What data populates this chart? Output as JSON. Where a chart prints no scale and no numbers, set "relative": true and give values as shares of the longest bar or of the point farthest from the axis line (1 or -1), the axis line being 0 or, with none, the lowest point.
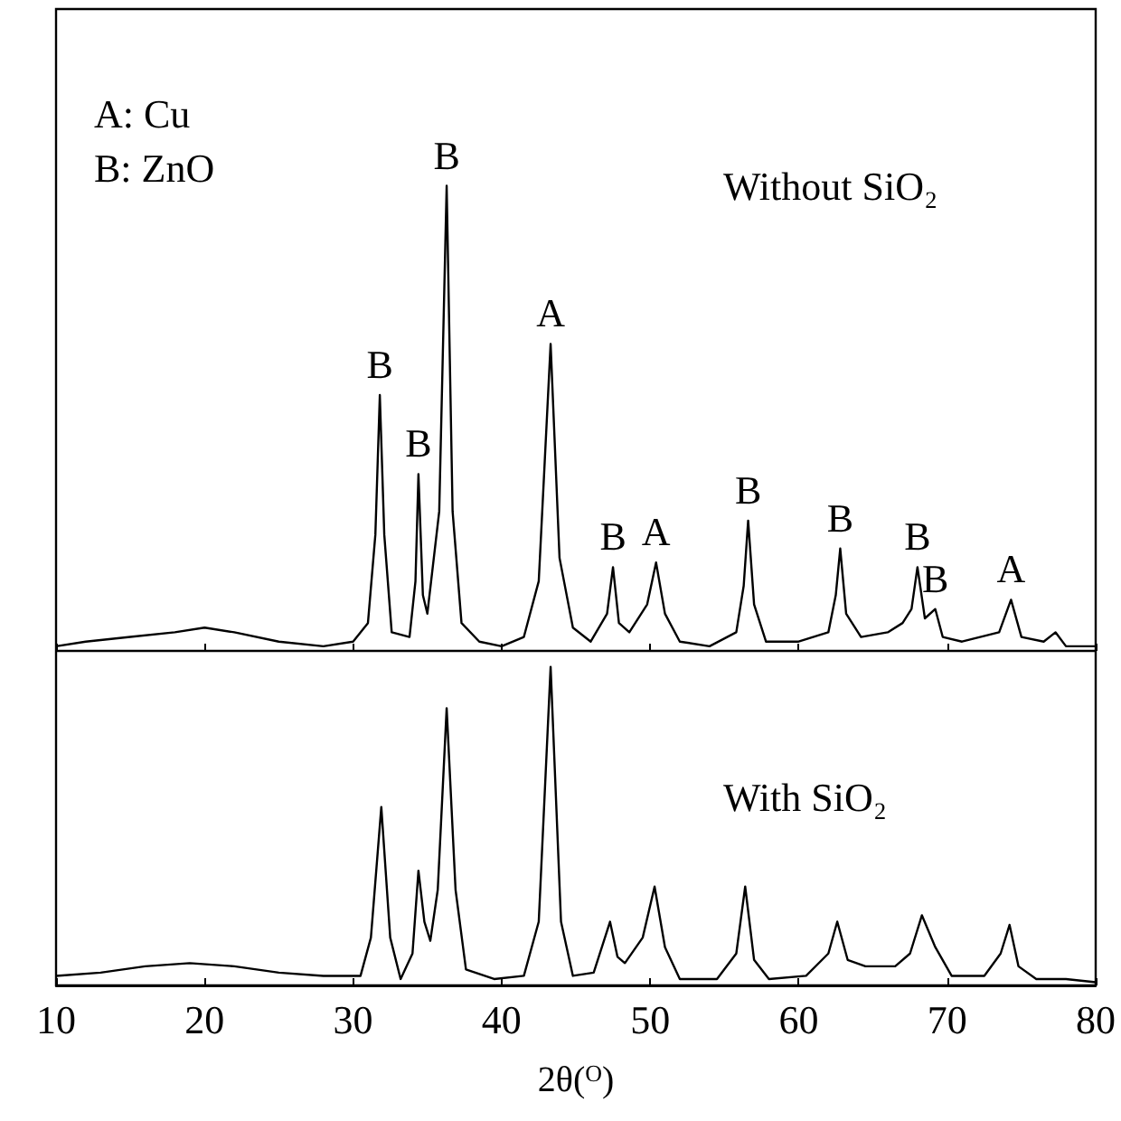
{
  "chart_data": [
    {
      "type": "line",
      "relative": true,
      "tick_labels": false,
      "xlim": [
        10,
        80
      ],
      "xticks": [
        10,
        20,
        30,
        40,
        50,
        60,
        70,
        80
      ],
      "series": [
        {
          "color": "#000000",
          "x": [
            10,
            12,
            15,
            18,
            20,
            22,
            25,
            28,
            30,
            31.0,
            31.5,
            31.8,
            32.1,
            32.6,
            33.8,
            34.2,
            34.4,
            34.7,
            35.0,
            35.8,
            36.3,
            36.7,
            37.3,
            38.5,
            40,
            41.5,
            42.5,
            43.3,
            43.9,
            44.8,
            46.0,
            47.1,
            47.5,
            47.9,
            48.6,
            49.8,
            50.4,
            51.0,
            52.0,
            54,
            55.8,
            56.3,
            56.6,
            57.0,
            57.8,
            60,
            62.0,
            62.5,
            62.8,
            63.2,
            64.2,
            66,
            67.0,
            67.6,
            68.0,
            68.5,
            69.2,
            69.7,
            71,
            73.5,
            74.3,
            75.0,
            76.5,
            77.3,
            78,
            80
          ],
          "values": [
            0.01,
            0.02,
            0.03,
            0.04,
            0.05,
            0.04,
            0.02,
            0.01,
            0.02,
            0.06,
            0.25,
            0.55,
            0.25,
            0.04,
            0.03,
            0.15,
            0.38,
            0.12,
            0.08,
            0.3,
            1.0,
            0.3,
            0.06,
            0.02,
            0.01,
            0.03,
            0.15,
            0.66,
            0.2,
            0.05,
            0.02,
            0.08,
            0.18,
            0.06,
            0.04,
            0.1,
            0.19,
            0.08,
            0.02,
            0.01,
            0.04,
            0.14,
            0.28,
            0.1,
            0.02,
            0.02,
            0.04,
            0.12,
            0.22,
            0.08,
            0.03,
            0.04,
            0.06,
            0.09,
            0.18,
            0.07,
            0.09,
            0.03,
            0.02,
            0.04,
            0.11,
            0.03,
            0.02,
            0.04,
            0.01,
            0.01
          ]
        }
      ],
      "annotations": [
        "A: Cu",
        "B: ZnO",
        "Without SiO₂",
        {
          "text": "B",
          "x": 31.8,
          "y": 0.55
        },
        {
          "text": "B",
          "x": 34.4,
          "y": 0.38
        },
        {
          "text": "B",
          "x": 36.3,
          "y": 1.0
        },
        {
          "text": "A",
          "x": 43.3,
          "y": 0.66
        },
        {
          "text": "B",
          "x": 47.5,
          "y": 0.18
        },
        {
          "text": "A",
          "x": 50.4,
          "y": 0.19
        },
        {
          "text": "B",
          "x": 56.6,
          "y": 0.28
        },
        {
          "text": "B",
          "x": 62.8,
          "y": 0.22
        },
        {
          "text": "B",
          "x": 68.0,
          "y": 0.18
        },
        {
          "text": "B",
          "x": 69.2,
          "y": 0.09
        },
        {
          "text": "A",
          "x": 74.3,
          "y": 0.11
        }
      ]
    },
    {
      "type": "line",
      "relative": true,
      "tick_labels": "x",
      "xlim": [
        10,
        80
      ],
      "xticks": [
        10,
        20,
        30,
        40,
        50,
        60,
        70,
        80
      ],
      "xlabel": "2θ($^{O}$)",
      "series": [
        {
          "color": "#000000",
          "x": [
            10,
            13,
            16,
            19,
            22,
            25,
            28,
            30.5,
            31.2,
            31.9,
            32.5,
            33.2,
            34.0,
            34.4,
            34.8,
            35.2,
            35.7,
            36.3,
            36.9,
            37.6,
            39.5,
            41.5,
            42.5,
            43.3,
            44.0,
            44.8,
            46.2,
            47.3,
            47.8,
            48.3,
            49.5,
            50.3,
            51.0,
            52.0,
            54.5,
            55.8,
            56.4,
            57.0,
            58.0,
            60.5,
            62.0,
            62.6,
            63.3,
            64.5,
            66.5,
            67.5,
            68.3,
            69.2,
            70.3,
            72.5,
            73.6,
            74.2,
            74.8,
            76.0,
            78.0,
            80
          ],
          "values": [
            0.03,
            0.04,
            0.06,
            0.07,
            0.06,
            0.04,
            0.03,
            0.03,
            0.15,
            0.56,
            0.15,
            0.02,
            0.1,
            0.36,
            0.2,
            0.14,
            0.3,
            0.87,
            0.3,
            0.05,
            0.02,
            0.03,
            0.2,
            1.0,
            0.2,
            0.03,
            0.04,
            0.2,
            0.09,
            0.07,
            0.15,
            0.31,
            0.12,
            0.02,
            0.02,
            0.1,
            0.31,
            0.08,
            0.02,
            0.03,
            0.1,
            0.2,
            0.08,
            0.06,
            0.06,
            0.1,
            0.22,
            0.12,
            0.03,
            0.03,
            0.1,
            0.19,
            0.06,
            0.02,
            0.02,
            0.01
          ]
        }
      ],
      "annotations": [
        "With SiO₂"
      ]
    }
  ]
}
